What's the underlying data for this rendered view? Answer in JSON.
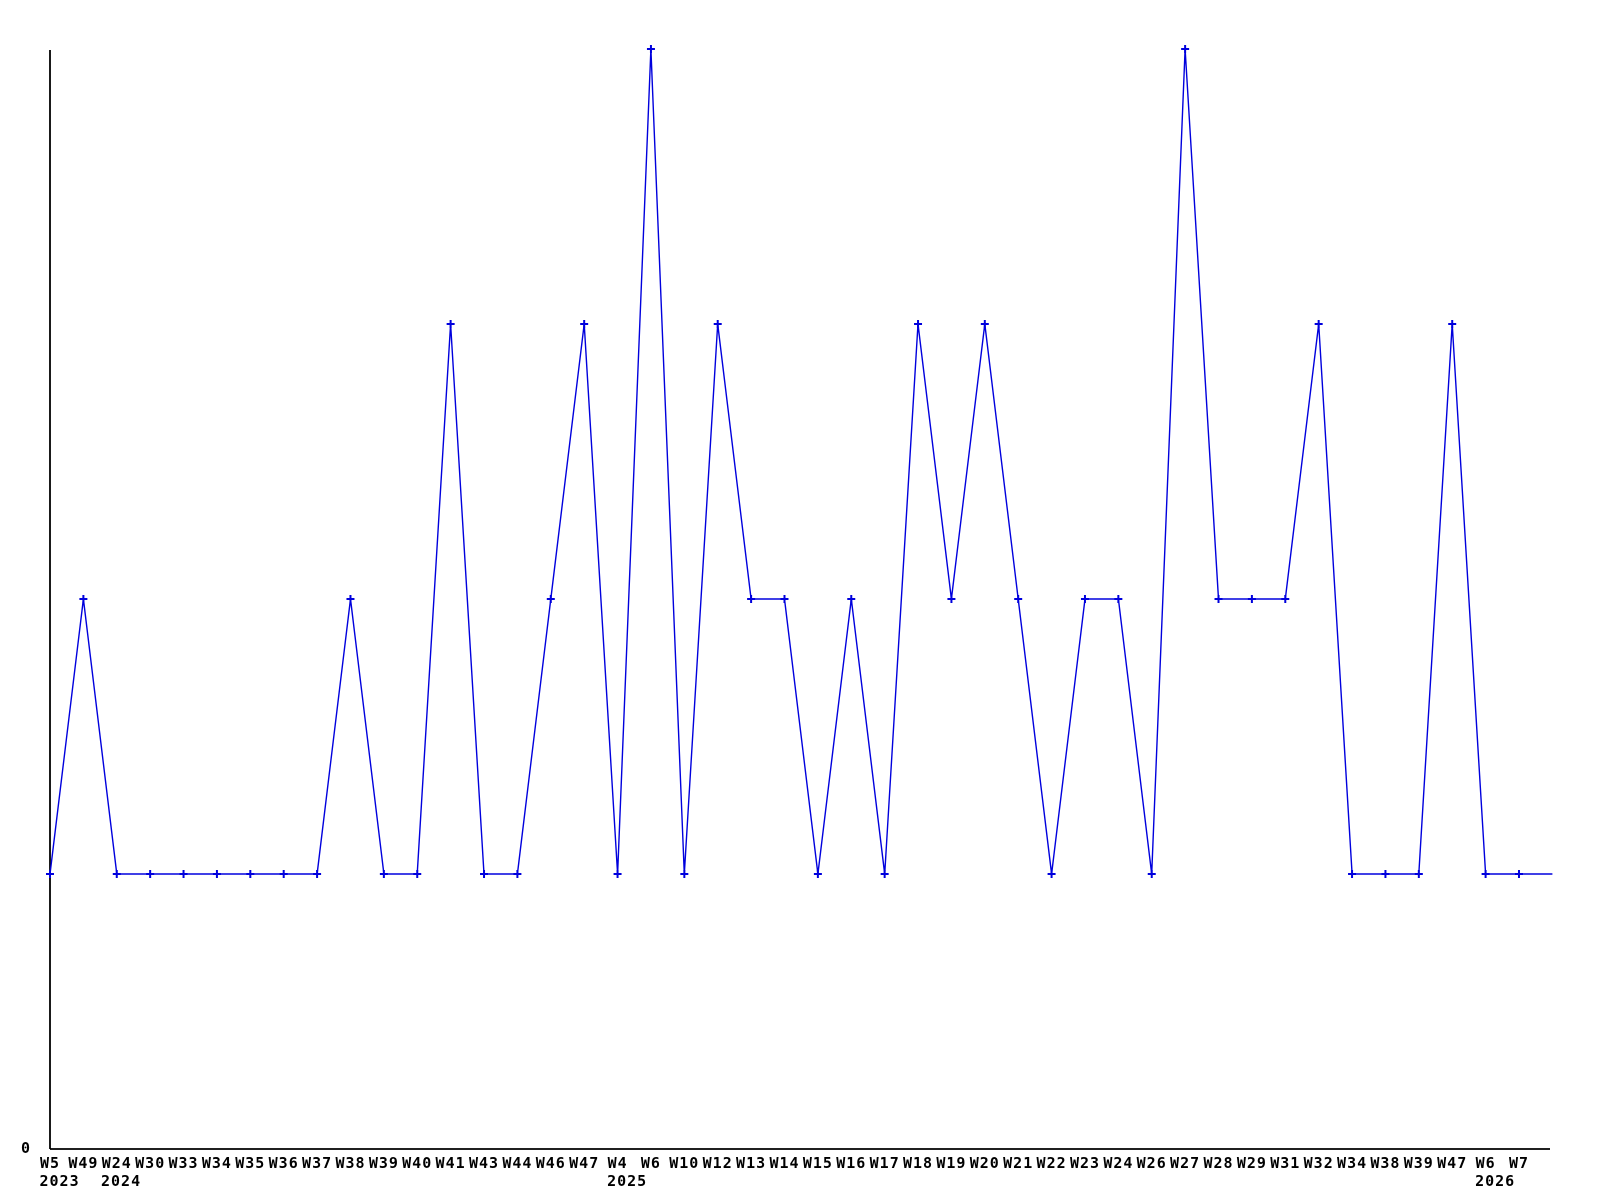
{
  "page": {
    "background_color": "#ffffff"
  },
  "chart_data": {
    "type": "line",
    "title": "",
    "xlabel": "",
    "ylabel": "",
    "grid": false,
    "legend": null,
    "series_color": "#0000dd",
    "axis_color": "#000000",
    "marker_style": "plus",
    "y_axis": {
      "min": 0,
      "max": 4,
      "tick_labels": [
        "0"
      ]
    },
    "categories": [
      "W5",
      "W49",
      "W24",
      "W30",
      "W33",
      "W34",
      "W35",
      "W36",
      "W37",
      "W38",
      "W39",
      "W40",
      "W41",
      "W43",
      "W44",
      "W46",
      "W47",
      "W4",
      "W6",
      "W10",
      "W12",
      "W13",
      "W14",
      "W15",
      "W16",
      "W17",
      "W18",
      "W19",
      "W20",
      "W21",
      "W22",
      "W23",
      "W24",
      "W26",
      "W27",
      "W28",
      "W29",
      "W31",
      "W32",
      "W34",
      "W38",
      "W39",
      "W47",
      "W6",
      "W7"
    ],
    "year_row": [
      "2023",
      "",
      "2024",
      "",
      "",
      "",
      "",
      "",
      "",
      "",
      "",
      "",
      "",
      "",
      "",
      "",
      "",
      "2025",
      "",
      "",
      "",
      "",
      "",
      "",
      "",
      "",
      "",
      "",
      "",
      "",
      "",
      "",
      "",
      "",
      "",
      "",
      "",
      "",
      "",
      "",
      "",
      "",
      "",
      "2026",
      ""
    ],
    "values": [
      1,
      2,
      1,
      1,
      1,
      1,
      1,
      1,
      1,
      2,
      1,
      1,
      3,
      1,
      1,
      2,
      3,
      1,
      4,
      1,
      3,
      2,
      2,
      1,
      2,
      1,
      3,
      2,
      3,
      2,
      1,
      2,
      2,
      1,
      4,
      2,
      2,
      2,
      3,
      1,
      1,
      1,
      3,
      1,
      1
    ],
    "trailing_segment": {
      "value": 1,
      "has_marker": false,
      "has_label": false
    }
  }
}
